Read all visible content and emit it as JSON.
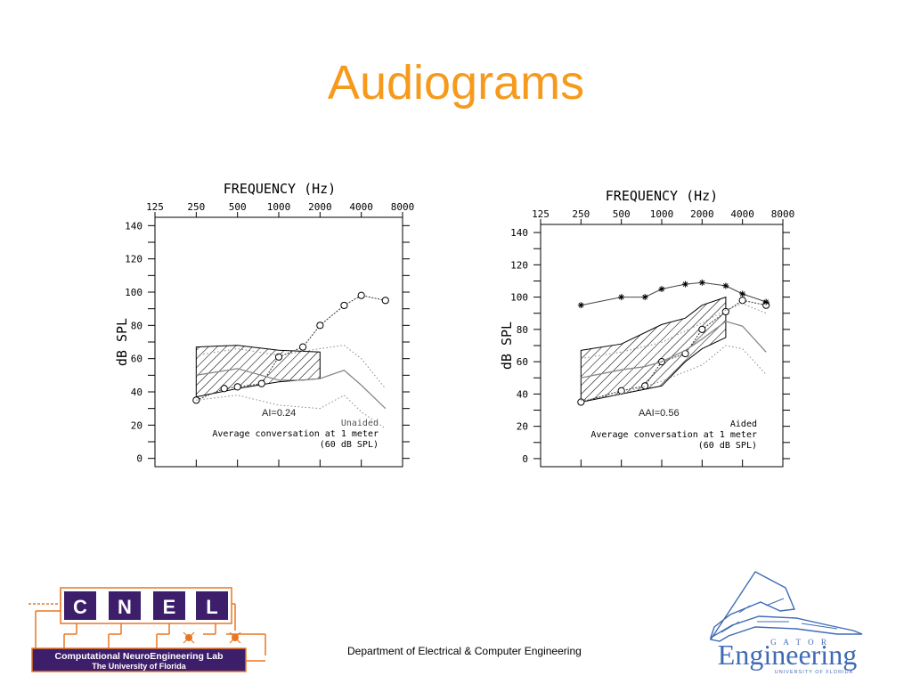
{
  "slide": {
    "title": "Audiograms",
    "footer": "Department of Electrical & Computer Engineering"
  },
  "colors": {
    "title": "#f59a1c",
    "cnel_purple": "#3d1e6b",
    "cnel_orange": "#e87722",
    "gator_blue": "#3f6bb4"
  },
  "logos": {
    "cnel": {
      "letters": [
        "C",
        "N",
        "E",
        "L"
      ],
      "line1": "Computational NeuroEngineering Lab",
      "line2": "The University of Florida"
    },
    "gator": {
      "word": "Engineering",
      "top_letters": "G A T O R",
      "tagline": "UNIVERSITY OF FLORIDA"
    }
  },
  "chart_data": [
    {
      "type": "line",
      "title": "FREQUENCY (Hz)",
      "xlabel": "",
      "ylabel": "dB SPL",
      "x_scale": "log",
      "x_ticks": [
        125,
        250,
        500,
        1000,
        2000,
        4000,
        8000
      ],
      "x_tick_labels": [
        "125",
        "250",
        "500",
        "1000",
        "2000",
        "4000",
        "8000"
      ],
      "xlim": [
        125,
        8000
      ],
      "ylim": [
        -5,
        145
      ],
      "y_ticks": [
        0,
        20,
        40,
        60,
        80,
        100,
        120,
        140
      ],
      "y_tick_labels": [
        "0",
        "20",
        "40",
        "60",
        "80",
        "100",
        "120",
        "140"
      ],
      "grid": false,
      "legend": "none",
      "annotations": {
        "index": "AI=0.24",
        "condition": "Unaided",
        "caption1": "Average conversation at 1 meter",
        "caption2": "(60 dB SPL)"
      },
      "speech_region": {
        "x": [
          250,
          500,
          1000,
          2000
        ],
        "upper": [
          67,
          68,
          65,
          64
        ],
        "lower": [
          37,
          42,
          46,
          48
        ]
      },
      "series": [
        {
          "style": "threshold",
          "x": [
            250,
            400,
            500,
            750,
            1000,
            1500,
            2000,
            3000,
            4000,
            6000
          ],
          "y": [
            35,
            42,
            43,
            45,
            61,
            67,
            80,
            92,
            98,
            95
          ]
        },
        {
          "style": "speech-mean",
          "x": [
            250,
            500,
            1000,
            1500,
            2000,
            3000,
            4000,
            6000
          ],
          "y": [
            50,
            54,
            47,
            47,
            48,
            53,
            44,
            30
          ]
        },
        {
          "style": "speech-upper",
          "x": [
            250,
            500,
            1000,
            2000,
            3000,
            4000,
            6000
          ],
          "y": [
            62,
            66,
            62,
            66,
            68,
            60,
            42
          ]
        },
        {
          "style": "speech-lower",
          "x": [
            250,
            500,
            1000,
            2000,
            3000,
            4000,
            6000
          ],
          "y": [
            35,
            38,
            32,
            30,
            38,
            28,
            18
          ]
        }
      ]
    },
    {
      "type": "line",
      "title": "FREQUENCY (Hz)",
      "xlabel": "",
      "ylabel": "dB SPL",
      "x_scale": "log",
      "x_ticks": [
        125,
        250,
        500,
        1000,
        2000,
        4000,
        8000
      ],
      "x_tick_labels": [
        "125",
        "250",
        "500",
        "1000",
        "2000",
        "4000",
        "8000"
      ],
      "xlim": [
        125,
        8000
      ],
      "ylim": [
        -5,
        145
      ],
      "y_ticks": [
        0,
        20,
        40,
        60,
        80,
        100,
        120,
        140
      ],
      "y_tick_labels": [
        "0",
        "20",
        "40",
        "60",
        "80",
        "100",
        "120",
        "140"
      ],
      "grid": false,
      "legend": "none",
      "annotations": {
        "index": "AAI=0.56",
        "condition": "Aided",
        "caption1": "Average conversation at 1 meter",
        "caption2": "(60 dB SPL)"
      },
      "speech_region": {
        "x": [
          250,
          500,
          1000,
          1500,
          2000,
          3000
        ],
        "upper": [
          67,
          71,
          83,
          87,
          95,
          100
        ],
        "lower": [
          35,
          40,
          45,
          60,
          68,
          75
        ]
      },
      "series": [
        {
          "style": "threshold",
          "x": [
            250,
            500,
            750,
            1000,
            1500,
            2000,
            3000,
            4000,
            6000
          ],
          "y": [
            35,
            42,
            45,
            60,
            65,
            80,
            91,
            98,
            95
          ]
        },
        {
          "style": "discomfort",
          "x": [
            250,
            500,
            750,
            1000,
            1500,
            2000,
            3000,
            4000,
            6000
          ],
          "y": [
            95,
            100,
            100,
            105,
            108,
            109,
            107,
            102,
            97
          ]
        },
        {
          "style": "speech-mean",
          "x": [
            250,
            500,
            750,
            1000,
            1500,
            2000,
            3000,
            4000,
            6000
          ],
          "y": [
            50,
            55,
            57,
            60,
            67,
            74,
            85,
            82,
            66
          ]
        },
        {
          "style": "speech-upper",
          "x": [
            250,
            500,
            1000,
            2000,
            3000,
            4000,
            6000
          ],
          "y": [
            62,
            66,
            72,
            84,
            92,
            96,
            90
          ]
        },
        {
          "style": "speech-lower",
          "x": [
            250,
            500,
            1000,
            2000,
            3000,
            4000,
            6000
          ],
          "y": [
            36,
            40,
            48,
            58,
            70,
            68,
            52
          ]
        }
      ]
    }
  ]
}
